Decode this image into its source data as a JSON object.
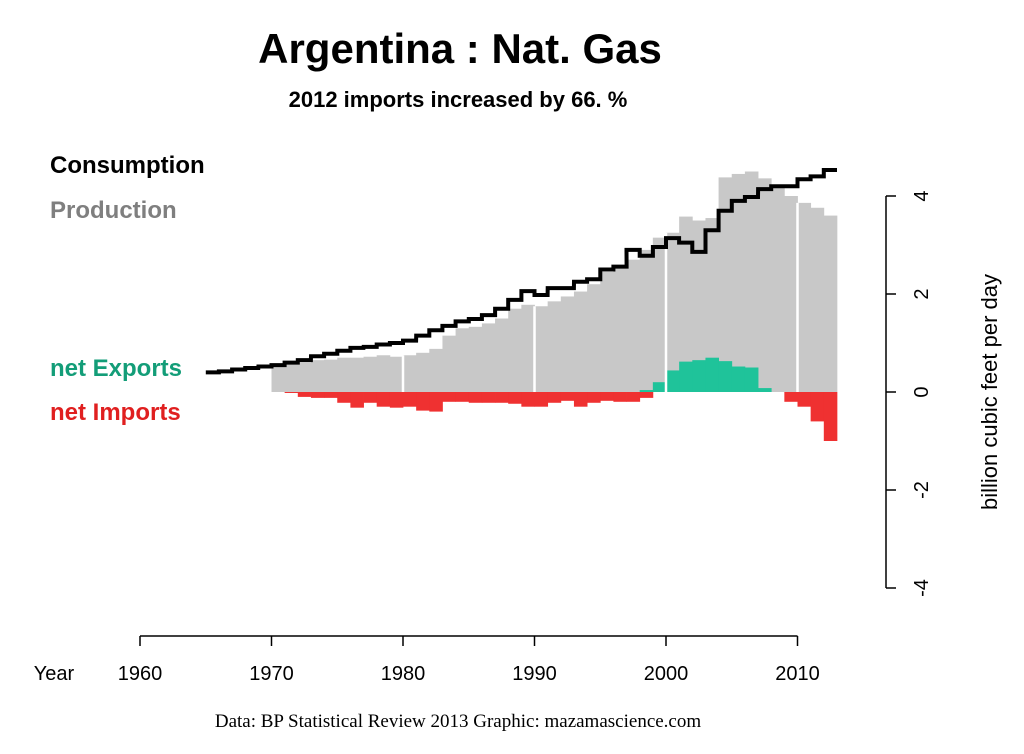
{
  "title": "Argentina :  Nat. Gas",
  "subtitle": "2012 imports increased by 66. %",
  "source": "Data: BP Statistical Review 2013    Graphic: mazamascience.com",
  "colors": {
    "consumption": "#000000",
    "production": "#c8c8c8",
    "production_text": "#7f7f7f",
    "exports": "#1fc39a",
    "exports_text": "#139d78",
    "imports": "#ef3131",
    "imports_text": "#e01f1f"
  },
  "chart_data": {
    "type": "area",
    "title": "Argentina :  Nat. Gas",
    "subtitle": "2012 imports increased by 66. %",
    "xlabel": "Year",
    "ylabel": "billion cubic feet per day",
    "xlim": [
      1960,
      2013
    ],
    "ylim": [
      -4,
      4
    ],
    "x_ticks": [
      "1960",
      "1970",
      "1980",
      "1990",
      "2000",
      "2010"
    ],
    "y_ticks": [
      "-4",
      "-2",
      "0",
      "2",
      "4"
    ],
    "legend": [
      "Consumption",
      "Production",
      "net Exports",
      "net Imports"
    ],
    "legend_position": "left",
    "decade_lines": [
      1980,
      1990,
      2000,
      2010
    ],
    "series": [
      {
        "name": "Consumption",
        "style": "step-line",
        "x": [
          1965,
          1966,
          1967,
          1968,
          1969,
          1970,
          1971,
          1972,
          1973,
          1974,
          1975,
          1976,
          1977,
          1978,
          1979,
          1980,
          1981,
          1982,
          1983,
          1984,
          1985,
          1986,
          1987,
          1988,
          1989,
          1990,
          1991,
          1992,
          1993,
          1994,
          1995,
          1996,
          1997,
          1998,
          1999,
          2000,
          2001,
          2002,
          2003,
          2004,
          2005,
          2006,
          2007,
          2008,
          2009,
          2010,
          2011,
          2012
        ],
        "values": [
          0.4,
          0.42,
          0.46,
          0.49,
          0.52,
          0.55,
          0.6,
          0.65,
          0.73,
          0.78,
          0.84,
          0.9,
          0.92,
          0.97,
          1.0,
          1.05,
          1.15,
          1.26,
          1.35,
          1.44,
          1.49,
          1.57,
          1.7,
          1.88,
          2.06,
          1.98,
          2.12,
          2.12,
          2.25,
          2.3,
          2.5,
          2.56,
          2.9,
          2.78,
          2.96,
          3.14,
          3.05,
          2.86,
          3.3,
          3.7,
          3.9,
          3.98,
          4.14,
          4.2,
          4.2,
          4.34,
          4.4,
          4.53
        ]
      },
      {
        "name": "Production",
        "style": "step-area",
        "x": [
          1970,
          1971,
          1972,
          1973,
          1974,
          1975,
          1976,
          1977,
          1978,
          1979,
          1980,
          1981,
          1982,
          1983,
          1984,
          1985,
          1986,
          1987,
          1988,
          1989,
          1990,
          1991,
          1992,
          1993,
          1994,
          1995,
          1996,
          1997,
          1998,
          1999,
          2000,
          2001,
          2002,
          2003,
          2004,
          2005,
          2006,
          2007,
          2008,
          2009,
          2010,
          2011,
          2012
        ],
        "values": [
          0.55,
          0.57,
          0.6,
          0.65,
          0.66,
          0.7,
          0.7,
          0.72,
          0.75,
          0.72,
          0.75,
          0.8,
          0.88,
          1.15,
          1.3,
          1.33,
          1.4,
          1.5,
          1.7,
          1.78,
          1.75,
          1.85,
          1.95,
          2.05,
          2.2,
          2.45,
          2.55,
          2.7,
          2.9,
          3.15,
          3.25,
          3.58,
          3.5,
          3.55,
          4.38,
          4.45,
          4.5,
          4.36,
          4.2,
          4.0,
          3.86,
          3.76,
          3.6
        ]
      },
      {
        "name": "net Exports",
        "style": "step-area",
        "x": [
          1998,
          1999,
          2000,
          2001,
          2002,
          2003,
          2004,
          2005,
          2006,
          2007,
          2008
        ],
        "values": [
          0.04,
          0.2,
          0.44,
          0.62,
          0.65,
          0.7,
          0.63,
          0.52,
          0.5,
          0.08,
          0.0
        ]
      },
      {
        "name": "net Imports",
        "style": "step-area",
        "x": [
          1970,
          1971,
          1972,
          1973,
          1974,
          1975,
          1976,
          1977,
          1978,
          1979,
          1980,
          1981,
          1982,
          1983,
          1984,
          1985,
          1986,
          1987,
          1988,
          1989,
          1990,
          1991,
          1992,
          1993,
          1994,
          1995,
          1996,
          1997,
          1998,
          1999,
          2000,
          2001,
          2002,
          2003,
          2004,
          2005,
          2006,
          2007,
          2008,
          2009,
          2010,
          2011,
          2012
        ],
        "values": [
          0,
          -0.02,
          -0.1,
          -0.12,
          -0.12,
          -0.22,
          -0.32,
          -0.22,
          -0.3,
          -0.32,
          -0.3,
          -0.38,
          -0.4,
          -0.2,
          -0.2,
          -0.22,
          -0.22,
          -0.22,
          -0.24,
          -0.3,
          -0.3,
          -0.22,
          -0.18,
          -0.3,
          -0.22,
          -0.18,
          -0.2,
          -0.2,
          -0.12,
          0,
          0,
          0,
          0,
          0,
          0,
          0,
          0,
          0,
          0,
          -0.2,
          -0.3,
          -0.6,
          -1.0
        ]
      }
    ]
  }
}
